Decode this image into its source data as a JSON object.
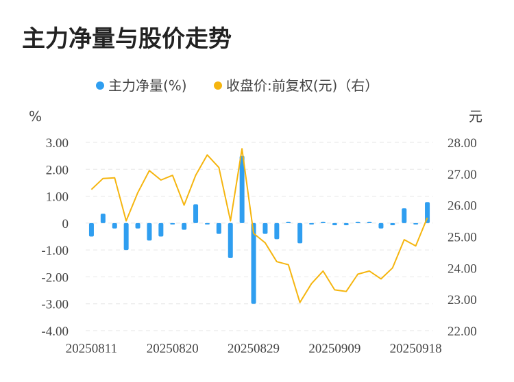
{
  "title": "主力净量与股价走势",
  "legend": [
    {
      "label": "主力净量(%)",
      "color": "#2f9ef0",
      "marker": "dot"
    },
    {
      "label": "收盘价:前复权(元)（右）",
      "color": "#f5b50f",
      "marker": "dot"
    }
  ],
  "left_unit": "%",
  "right_unit": "元",
  "chart_data": {
    "type": "bar+line",
    "categories": [
      "20250811",
      "20250812",
      "20250813",
      "20250814",
      "20250815",
      "20250818",
      "20250819",
      "20250820",
      "20250821",
      "20250822",
      "20250825",
      "20250826",
      "20250827",
      "20250828",
      "20250829",
      "20250901",
      "20250902",
      "20250903",
      "20250904",
      "20250905",
      "20250908",
      "20250909",
      "20250910",
      "20250911",
      "20250912",
      "20250915",
      "20250916",
      "20250917",
      "20250918",
      "20250919"
    ],
    "x_tick_labels": [
      "20250811",
      "20250820",
      "20250829",
      "20250909",
      "20250918"
    ],
    "left_axis": {
      "ylim": [
        -4,
        3
      ],
      "ticks": [
        "3.00",
        "2.00",
        "1.00",
        "0",
        "-1.00",
        "-2.00",
        "-3.00",
        "-4.00"
      ]
    },
    "right_axis": {
      "ylim": [
        22,
        28
      ],
      "ticks": [
        "28.00",
        "27.00",
        "26.00",
        "25.00",
        "24.00",
        "23.00",
        "22.00"
      ]
    },
    "grid": true,
    "legend_position": "top-center",
    "series": [
      {
        "name": "主力净量(%)",
        "type": "bar",
        "axis": "left",
        "color": "#2f9ef0",
        "values": [
          -0.5,
          0.35,
          -0.2,
          -1.0,
          -0.2,
          -0.65,
          -0.5,
          -0.05,
          -0.25,
          0.7,
          -0.05,
          -0.4,
          -1.3,
          2.5,
          -3.0,
          -0.4,
          -0.6,
          0.02,
          -0.75,
          -0.05,
          0.05,
          -0.08,
          -0.08,
          0.05,
          0.05,
          -0.2,
          -0.08,
          0.55,
          -0.03,
          0.78
        ]
      },
      {
        "name": "收盘价:前复权(元)（右）",
        "type": "line",
        "axis": "right",
        "color": "#f5b50f",
        "values": [
          26.5,
          26.85,
          26.87,
          25.5,
          26.4,
          27.1,
          26.8,
          26.95,
          26.0,
          26.95,
          27.6,
          27.2,
          25.5,
          27.8,
          25.1,
          24.8,
          24.2,
          24.1,
          22.9,
          23.5,
          23.9,
          23.3,
          23.25,
          23.8,
          23.9,
          23.65,
          24.0,
          24.9,
          24.7,
          25.6
        ]
      }
    ]
  }
}
